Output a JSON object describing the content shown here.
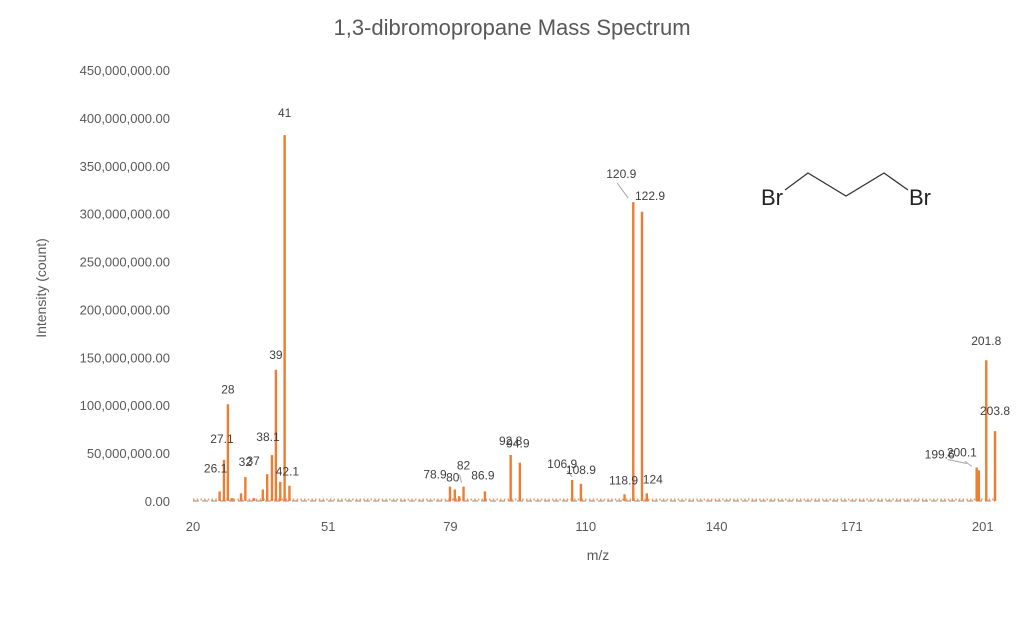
{
  "chart_data": {
    "type": "bar",
    "title": "1,3-dibromopropane Mass Spectrum",
    "xlabel": "m/z",
    "ylabel": "Intensity (count)",
    "ylim": [
      0,
      450000000
    ],
    "xlim": [
      20,
      203.8
    ],
    "x_ticks": [
      "20",
      "51",
      "79",
      "110",
      "140",
      "171",
      "201"
    ],
    "y_ticks": [
      "0.00",
      "50,000,000.00",
      "100,000,000.00",
      "150,000,000.00",
      "200,000,000.00",
      "250,000,000.00",
      "300,000,000.00",
      "350,000,000.00",
      "400,000,000.00",
      "450,000,000.00"
    ],
    "grid": false,
    "bar_color": "#ED7D31",
    "baseline_color": "#A5A5A5",
    "legend": "none",
    "series": [
      {
        "x": [
          26.1,
          27.1,
          28,
          29,
          31,
          32,
          34,
          36,
          37,
          38.1,
          39,
          40,
          41,
          42.1,
          78.9,
          80,
          81,
          82,
          86.9,
          92.8,
          94.9,
          106.9,
          108.9,
          118.9,
          120.9,
          122.9,
          124,
          199.6,
          200.1,
          201.8,
          203.8
        ],
        "values": [
          10000000,
          43000000,
          101000000,
          3000000,
          8000000,
          25000000,
          3000000,
          12000000,
          28000000,
          48000000,
          137000000,
          20000000,
          382000000,
          16000000,
          15000000,
          12000000,
          5000000,
          15000000,
          10000000,
          48000000,
          40000000,
          22000000,
          18000000,
          7000000,
          312000000,
          302000000,
          8000000,
          35000000,
          32000000,
          147000000,
          73000000
        ]
      }
    ],
    "annotations": [
      {
        "text": "26.1",
        "x": 26.1,
        "y": 10000000
      },
      {
        "text": "27.1",
        "x": 27.1,
        "y": 43000000
      },
      {
        "text": "28",
        "x": 28,
        "y": 101000000
      },
      {
        "text": "32",
        "x": 32,
        "y": 25000000
      },
      {
        "text": "37",
        "x": 37,
        "y": 28000000
      },
      {
        "text": "38.1",
        "x": 38.1,
        "y": 48000000
      },
      {
        "text": "39",
        "x": 39,
        "y": 137000000
      },
      {
        "text": "41",
        "x": 41,
        "y": 382000000
      },
      {
        "text": "42.1",
        "x": 42.1,
        "y": 16000000
      },
      {
        "text": "78.9",
        "x": 78.9,
        "y": 15000000
      },
      {
        "text": "80",
        "x": 80,
        "y": 12000000
      },
      {
        "text": "82",
        "x": 82,
        "y": 15000000
      },
      {
        "text": "86.9",
        "x": 86.9,
        "y": 10000000
      },
      {
        "text": "92.8",
        "x": 92.8,
        "y": 48000000
      },
      {
        "text": "94.9",
        "x": 94.9,
        "y": 40000000
      },
      {
        "text": "106.9",
        "x": 106.9,
        "y": 22000000
      },
      {
        "text": "108.9",
        "x": 108.9,
        "y": 18000000
      },
      {
        "text": "118.9",
        "x": 118.9,
        "y": 7000000
      },
      {
        "text": "120.9",
        "x": 120.9,
        "y": 312000000
      },
      {
        "text": "122.9",
        "x": 122.9,
        "y": 302000000
      },
      {
        "text": "124",
        "x": 124,
        "y": 8000000
      },
      {
        "text": "199.6",
        "x": 199.6,
        "y": 35000000
      },
      {
        "text": "200.1",
        "x": 200.1,
        "y": 32000000
      },
      {
        "text": "201.8",
        "x": 201.8,
        "y": 147000000
      },
      {
        "text": "203.8",
        "x": 203.8,
        "y": 73000000
      }
    ],
    "molecule_labels": [
      "Br",
      "Br"
    ]
  }
}
